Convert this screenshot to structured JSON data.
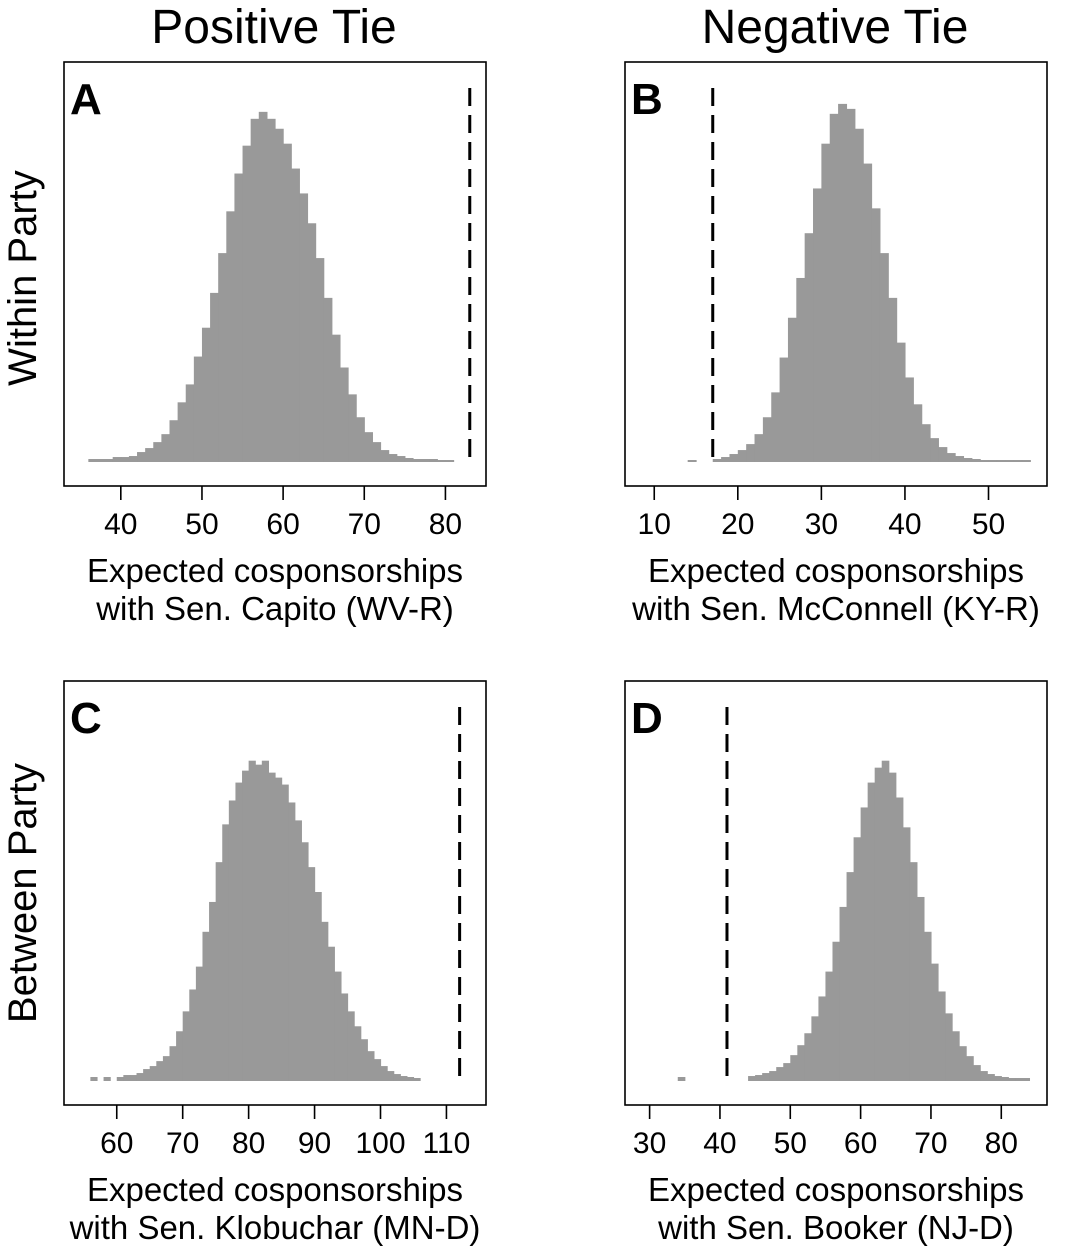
{
  "column_titles": [
    "Positive Tie",
    "Negative Tie"
  ],
  "row_titles": [
    "Within Party",
    "Between Party"
  ],
  "chart_data": [
    {
      "type": "bar",
      "panel": "A",
      "xlabel": [
        "Expected cosponsorships",
        "with Sen. Capito (WV-R)"
      ],
      "xlim": [
        33,
        85
      ],
      "xticks": [
        40,
        50,
        60,
        70,
        80
      ],
      "bin_width": 1,
      "bin_start": 36,
      "values": [
        3,
        3,
        3,
        5,
        5,
        6,
        10,
        14,
        20,
        28,
        42,
        60,
        78,
        106,
        135,
        170,
        210,
        252,
        290,
        318,
        345,
        352,
        345,
        335,
        320,
        295,
        270,
        240,
        205,
        165,
        128,
        95,
        68,
        45,
        30,
        20,
        12,
        8,
        6,
        4,
        3,
        3,
        3,
        2,
        2,
        0,
        0
      ],
      "ylim": [
        0,
        380
      ],
      "vline": 83,
      "vline_style": "dashed"
    },
    {
      "type": "bar",
      "panel": "B",
      "xlabel": [
        "Expected cosponsorships",
        "with Sen. McConnell (KY-R)"
      ],
      "xlim": [
        6.5,
        57
      ],
      "xticks": [
        10,
        20,
        30,
        40,
        50
      ],
      "bin_width": 1,
      "bin_start": 14,
      "values": [
        2,
        0,
        0,
        3,
        5,
        8,
        12,
        18,
        28,
        45,
        70,
        105,
        145,
        185,
        230,
        275,
        320,
        350,
        360,
        355,
        335,
        300,
        255,
        210,
        165,
        120,
        85,
        58,
        38,
        24,
        15,
        9,
        6,
        4,
        3,
        2,
        2,
        2,
        2,
        2,
        2
      ],
      "ylim": [
        0,
        380
      ],
      "vline": 17,
      "vline_style": "dashed"
    },
    {
      "type": "bar",
      "panel": "C",
      "xlabel": [
        "Expected cosponsorships",
        "with Sen. Klobuchar (MN-D)"
      ],
      "xlim": [
        52,
        116
      ],
      "xticks": [
        60,
        70,
        80,
        90,
        100,
        110
      ],
      "bin_width": 1,
      "bin_start": 56,
      "values": [
        4,
        0,
        4,
        0,
        4,
        6,
        6,
        8,
        12,
        15,
        20,
        25,
        35,
        50,
        70,
        92,
        115,
        150,
        180,
        220,
        258,
        282,
        300,
        312,
        322,
        318,
        322,
        310,
        305,
        298,
        280,
        262,
        240,
        215,
        190,
        160,
        135,
        110,
        88,
        70,
        55,
        42,
        30,
        22,
        15,
        10,
        7,
        5,
        4,
        3
      ],
      "ylim": [
        0,
        380
      ],
      "vline": 112,
      "vline_style": "dashed"
    },
    {
      "type": "bar",
      "panel": "D",
      "xlabel": [
        "Expected cosponsorships",
        "with Sen. Booker (NJ-D)"
      ],
      "xlim": [
        26.5,
        86.5
      ],
      "xticks": [
        30,
        40,
        50,
        60,
        70,
        80
      ],
      "bin_width": 1,
      "bin_start": 34,
      "values": [
        4,
        0,
        0,
        0,
        0,
        0,
        0,
        0,
        0,
        0,
        5,
        6,
        8,
        10,
        14,
        18,
        26,
        36,
        48,
        65,
        85,
        110,
        140,
        175,
        210,
        245,
        275,
        300,
        315,
        322,
        310,
        285,
        255,
        220,
        185,
        150,
        118,
        90,
        68,
        50,
        35,
        25,
        16,
        10,
        7,
        5,
        4,
        3,
        3,
        3
      ],
      "ylim": [
        0,
        380
      ],
      "vline": 41,
      "vline_style": "dashed"
    }
  ]
}
